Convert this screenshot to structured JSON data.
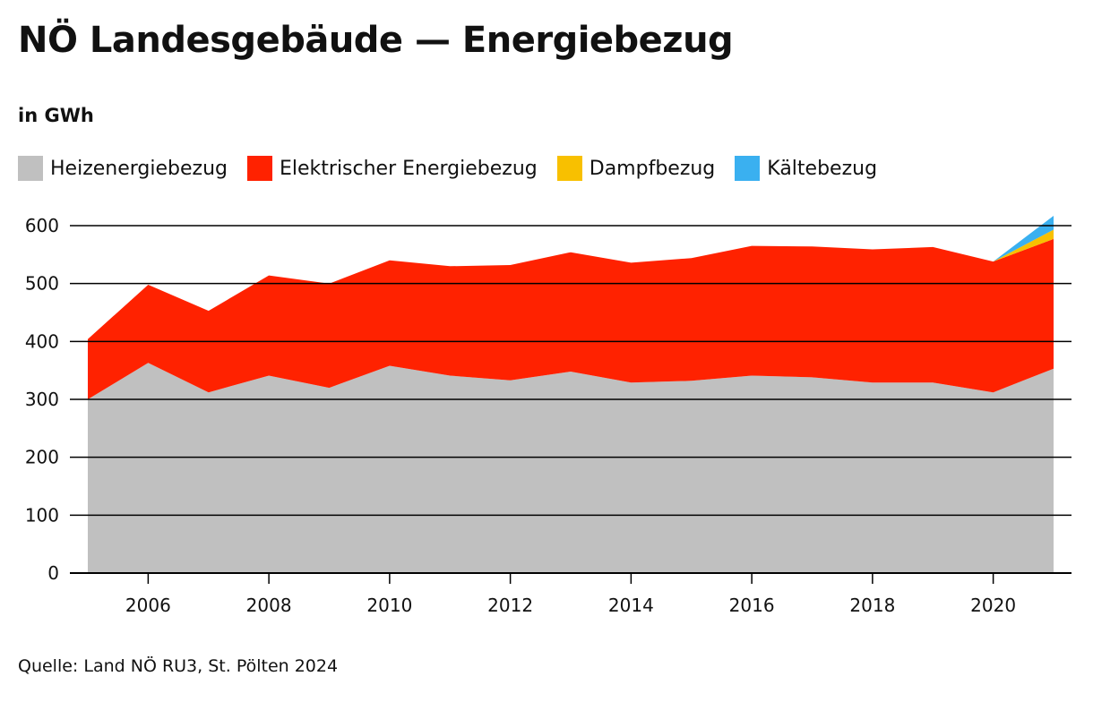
{
  "title": "NÖ Landesgebäude — Energiebezug",
  "unit_label": "in GWh",
  "source": "Quelle: Land NÖ RU3, St. Pölten 2024",
  "chart_data": {
    "type": "area",
    "stacked": true,
    "x": [
      2005,
      2006,
      2007,
      2008,
      2009,
      2010,
      2011,
      2012,
      2013,
      2014,
      2015,
      2016,
      2017,
      2018,
      2019,
      2020,
      2021
    ],
    "xlim": [
      2005,
      2021
    ],
    "x_ticks": [
      "2006",
      "2008",
      "2010",
      "2012",
      "2014",
      "2016",
      "2018",
      "2020"
    ],
    "ylim": [
      0,
      600
    ],
    "y_ticks": [
      "0",
      "100",
      "200",
      "300",
      "400",
      "500",
      "600"
    ],
    "grid": "horizontal",
    "legend_position": "top",
    "series": [
      {
        "name": "Heizenergiebezug",
        "color": "#c0c0c0",
        "values": [
          300,
          363,
          312,
          341,
          320,
          358,
          341,
          333,
          348,
          329,
          332,
          341,
          338,
          329,
          329,
          312,
          353
        ]
      },
      {
        "name": "Elektrischer Energiebezug",
        "color": "#ff2200",
        "values": [
          104,
          135,
          141,
          173,
          180,
          182,
          189,
          199,
          206,
          207,
          212,
          224,
          226,
          230,
          234,
          226,
          224
        ]
      },
      {
        "name": "Dampfbezug",
        "color": "#f8c000",
        "values": [
          0,
          0,
          0,
          0,
          0,
          0,
          0,
          0,
          0,
          0,
          0,
          0,
          0,
          0,
          0,
          0,
          16
        ]
      },
      {
        "name": "Kältebezug",
        "color": "#3ab0f0",
        "values": [
          0,
          0,
          0,
          0,
          0,
          0,
          0,
          0,
          0,
          0,
          0,
          0,
          0,
          0,
          0,
          0,
          24
        ]
      }
    ]
  }
}
